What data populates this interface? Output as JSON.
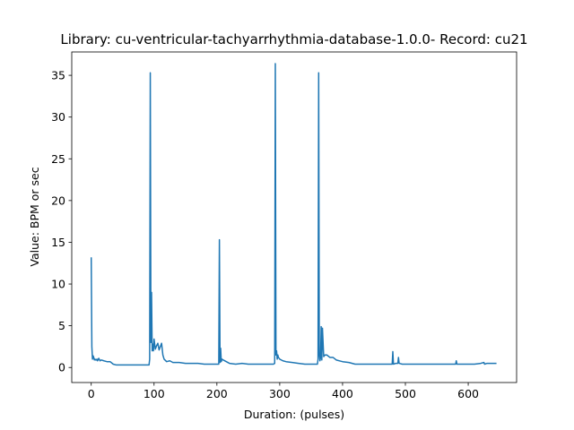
{
  "chart_data": {
    "type": "line",
    "title": "Library: cu-ventricular-tachyarrhythmia-database-1.0.0- Record: cu21",
    "xlabel": "Duration: (pulses)",
    "ylabel": "Value: BPM or sec",
    "xlim": [
      -31,
      677
    ],
    "ylim": [
      -1.8,
      37.8
    ],
    "xticks": [
      0,
      100,
      200,
      300,
      400,
      500,
      600
    ],
    "yticks": [
      0,
      5,
      10,
      15,
      20,
      25,
      30,
      35
    ],
    "grid": false,
    "color": "#1f77b4",
    "series": [
      {
        "x": [
          0,
          1,
          2,
          3,
          4,
          5,
          6,
          7,
          8,
          9,
          10,
          12,
          14,
          16,
          20,
          25,
          30,
          35,
          40,
          45,
          50,
          60,
          70,
          80,
          90,
          92,
          93,
          94,
          95,
          96,
          97,
          98,
          99,
          100,
          102,
          104,
          106,
          108,
          110,
          112,
          114,
          116,
          120,
          125,
          130,
          140,
          150,
          160,
          170,
          180,
          190,
          200,
          203,
          204,
          205,
          206,
          207,
          208,
          210,
          215,
          220,
          230,
          240,
          250,
          260,
          270,
          280,
          285,
          290,
          292,
          293,
          294,
          295,
          296,
          297,
          298,
          300,
          305,
          310,
          320,
          330,
          340,
          350,
          355,
          360,
          361,
          362,
          363,
          364,
          365,
          366,
          367,
          368,
          370,
          372,
          375,
          380,
          385,
          390,
          400,
          410,
          420,
          430,
          440,
          450,
          460,
          470,
          478,
          479,
          480,
          481,
          485,
          488,
          489,
          490,
          495,
          500,
          520,
          540,
          560,
          580,
          581,
          582,
          590,
          600,
          610,
          620,
          625,
          626,
          630,
          640,
          645
        ],
        "y": [
          13.2,
          2.5,
          1.0,
          1.4,
          1.2,
          0.9,
          1.0,
          0.9,
          0.9,
          1.0,
          0.8,
          1.1,
          0.8,
          0.9,
          0.8,
          0.7,
          0.7,
          0.4,
          0.3,
          0.3,
          0.3,
          0.3,
          0.3,
          0.3,
          0.3,
          0.3,
          1.0,
          35.3,
          3.0,
          9.0,
          2.0,
          2.8,
          2.0,
          3.4,
          2.2,
          2.6,
          2.9,
          2.1,
          2.5,
          2.9,
          1.5,
          1.0,
          0.7,
          0.8,
          0.6,
          0.6,
          0.5,
          0.5,
          0.5,
          0.4,
          0.4,
          0.4,
          0.4,
          15.3,
          0.6,
          2.3,
          0.7,
          1.0,
          0.9,
          0.7,
          0.5,
          0.4,
          0.5,
          0.4,
          0.4,
          0.4,
          0.4,
          0.4,
          0.4,
          0.5,
          36.4,
          1.5,
          2.0,
          1.0,
          1.5,
          1.2,
          1.0,
          0.8,
          0.7,
          0.6,
          0.5,
          0.4,
          0.4,
          0.4,
          0.4,
          1.0,
          35.3,
          1.5,
          0.8,
          1.2,
          4.9,
          0.9,
          4.7,
          1.3,
          1.5,
          1.5,
          1.2,
          1.2,
          0.9,
          0.7,
          0.6,
          0.4,
          0.4,
          0.4,
          0.4,
          0.4,
          0.4,
          0.4,
          0.4,
          1.9,
          0.4,
          0.5,
          0.5,
          1.2,
          0.5,
          0.4,
          0.4,
          0.4,
          0.4,
          0.4,
          0.4,
          0.8,
          0.4,
          0.4,
          0.4,
          0.4,
          0.5,
          0.6,
          0.4,
          0.5,
          0.5,
          0.5
        ]
      }
    ]
  }
}
